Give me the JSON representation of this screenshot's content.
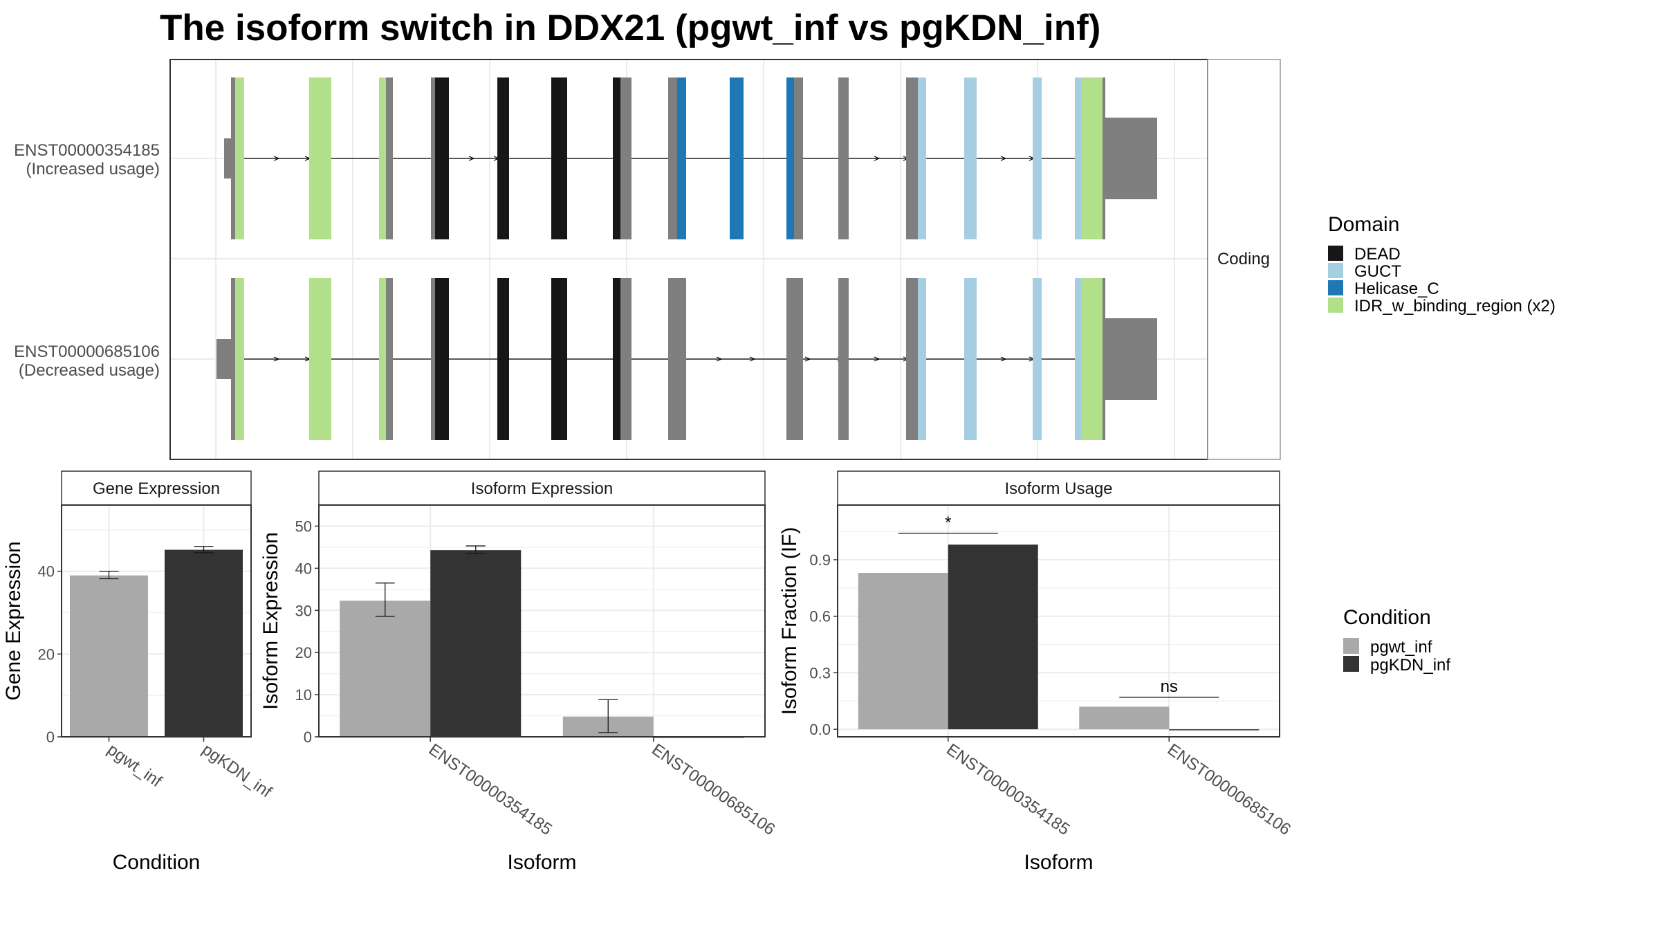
{
  "title": "The isoform switch in DDX21 (pgwt_inf vs pgKDN_inf)",
  "colors": {
    "DEAD": "#171717",
    "GUCT": "#a6cee3",
    "Helicase_C": "#1f78b4",
    "IDR": "#b2df8a",
    "exon": "#7f7f7f",
    "pgwt_inf": "#a9a9a9",
    "pgKDN_inf": "#333333"
  },
  "structure": {
    "strip_label": "Coding",
    "transcripts": [
      {
        "id": "ENST00000354185",
        "note": "(Increased usage)"
      },
      {
        "id": "ENST00000685106",
        "note": "(Decreased usage)"
      }
    ]
  },
  "legends": {
    "domain": {
      "title": "Domain",
      "items": [
        {
          "label": "DEAD",
          "color": "#171717"
        },
        {
          "label": "GUCT",
          "color": "#a6cee3"
        },
        {
          "label": "Helicase_C",
          "color": "#1f78b4"
        },
        {
          "label": "IDR_w_binding_region (x2)",
          "color": "#b2df8a"
        }
      ]
    },
    "condition": {
      "title": "Condition",
      "items": [
        {
          "label": "pgwt_inf",
          "color": "#a9a9a9"
        },
        {
          "label": "pgKDN_inf",
          "color": "#333333"
        }
      ]
    }
  },
  "chart_data": [
    {
      "type": "bar",
      "title": "Gene Expression",
      "xlabel": "Condition",
      "ylabel": "Gene Expression",
      "categories": [
        "pgwt_inf",
        "pgKDN_inf"
      ],
      "values": [
        39,
        45.2
      ],
      "errors": [
        [
          38.2,
          40.0
        ],
        [
          44.5,
          46.0
        ]
      ],
      "ylim": [
        0,
        56
      ],
      "yticks": [
        0,
        20,
        40
      ]
    },
    {
      "type": "bar",
      "title": "Isoform Expression",
      "xlabel": "Isoform",
      "ylabel": "Isoform Expression",
      "categories": [
        "ENST00000354185",
        "ENST00000685106"
      ],
      "series": [
        {
          "name": "pgwt_inf",
          "values": [
            32.3,
            4.8
          ],
          "errors": [
            [
              28.6,
              36.5
            ],
            [
              1.0,
              8.8
            ]
          ]
        },
        {
          "name": "pgKDN_inf",
          "values": [
            44.3,
            0
          ],
          "errors": [
            [
              43.5,
              45.3
            ],
            null
          ]
        }
      ],
      "ylim": [
        0,
        55
      ],
      "yticks": [
        0,
        10,
        20,
        30,
        40,
        50
      ]
    },
    {
      "type": "bar",
      "title": "Isoform Usage",
      "xlabel": "Isoform",
      "ylabel": "Isoform Fraction (IF)",
      "categories": [
        "ENST00000354185",
        "ENST00000685106"
      ],
      "series": [
        {
          "name": "pgwt_inf",
          "values": [
            0.83,
            0.12
          ]
        },
        {
          "name": "pgKDN_inf",
          "values": [
            0.98,
            0
          ]
        }
      ],
      "annotations": [
        {
          "category": "ENST00000354185",
          "label": "*",
          "y": 1.04
        },
        {
          "category": "ENST00000685106",
          "label": "ns",
          "y": 0.17
        }
      ],
      "ylim": [
        -0.04,
        1.19
      ],
      "yticks": [
        "0.0",
        "0.3",
        "0.6",
        "0.9"
      ]
    }
  ]
}
